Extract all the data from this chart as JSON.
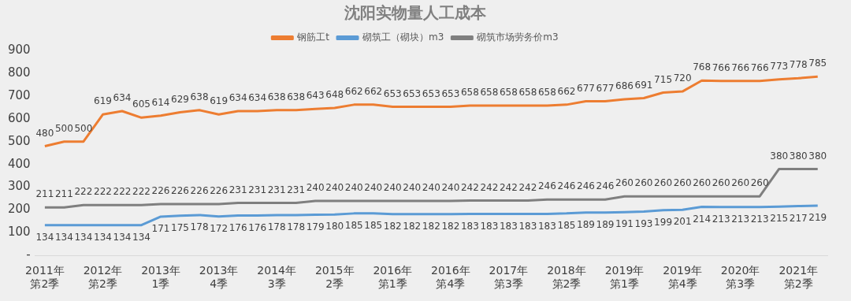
{
  "chart_data": {
    "type": "line",
    "title": "沈阳实物量人工成本",
    "categories": [
      "2011年第2季",
      null,
      null,
      "2012年第2季",
      null,
      null,
      "2013年1季",
      null,
      null,
      "2013年4季",
      null,
      null,
      "2014年3季",
      null,
      null,
      "2015年2季",
      null,
      null,
      "2016年第1季",
      null,
      null,
      "2016年第4季",
      null,
      null,
      "2017年第3季",
      null,
      null,
      "2018年第2季",
      null,
      null,
      "2019年第1季",
      null,
      null,
      "2019年第4季",
      null,
      null,
      "2020年第3季",
      null,
      null,
      "2021年第2季",
      null
    ],
    "series": [
      {
        "name": "钢筋工t",
        "color": "#ed7d31",
        "values": [
          480,
          500,
          500,
          619,
          634,
          605,
          614,
          629,
          638,
          619,
          634,
          634,
          638,
          638,
          643,
          648,
          662,
          662,
          653,
          653,
          653,
          653,
          658,
          658,
          658,
          658,
          658,
          662,
          677,
          677,
          686,
          691,
          715,
          720,
          768,
          766,
          766,
          766,
          773,
          778,
          785
        ]
      },
      {
        "name": "砌筑工（砌块）m3",
        "color": "#5b9bd5",
        "values": [
          134,
          134,
          134,
          134,
          134,
          134,
          171,
          175,
          178,
          172,
          176,
          176,
          178,
          178,
          179,
          180,
          185,
          185,
          182,
          182,
          182,
          182,
          183,
          183,
          183,
          183,
          183,
          185,
          189,
          189,
          191,
          193,
          199,
          201,
          214,
          213,
          213,
          213,
          215,
          217,
          219
        ]
      },
      {
        "name": "砌筑市场劳务价m3",
        "color": "#7f7f7f",
        "values": [
          211,
          211,
          222,
          222,
          222,
          222,
          226,
          226,
          226,
          226,
          231,
          231,
          231,
          231,
          240,
          240,
          240,
          240,
          240,
          240,
          240,
          240,
          242,
          242,
          242,
          242,
          246,
          246,
          246,
          246,
          260,
          260,
          260,
          260,
          260,
          260,
          260,
          260,
          380,
          380,
          380
        ]
      }
    ],
    "ylim": [
      0,
      900
    ],
    "yticks": [
      {
        "value": 0,
        "label": "-"
      },
      100,
      200,
      300,
      400,
      500,
      600,
      700,
      800,
      900
    ],
    "grid": false,
    "legend": "top",
    "marker": "none",
    "line_style": "solid",
    "data_labels": true
  }
}
